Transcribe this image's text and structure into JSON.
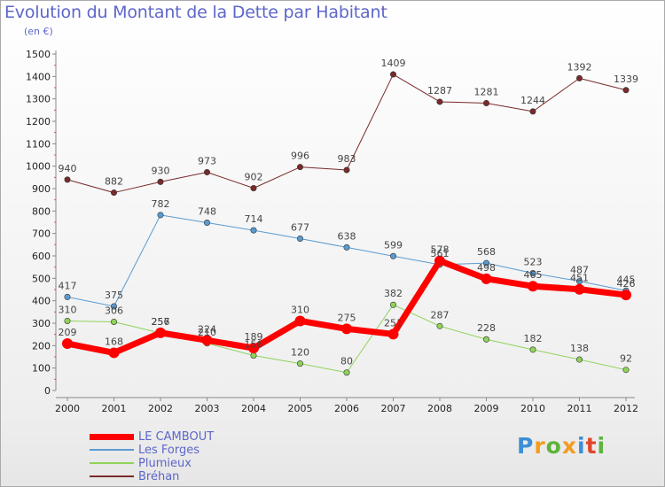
{
  "chart_data": {
    "type": "line",
    "title": "Evolution du Montant de la Dette par Habitant",
    "subtitle": "(en €)",
    "categories": [
      "2000",
      "2001",
      "2002",
      "2003",
      "2004",
      "2005",
      "2006",
      "2007",
      "2008",
      "2009",
      "2010",
      "2011",
      "2012"
    ],
    "ylim": [
      0,
      1500
    ],
    "yticks": [
      0,
      100,
      200,
      300,
      400,
      500,
      600,
      700,
      800,
      900,
      1000,
      1100,
      1200,
      1300,
      1400,
      1500
    ],
    "grid": false,
    "legend_position": "bottom-left",
    "series": [
      {
        "name": "LE CAMBOUT",
        "color": "#ff0000",
        "width": 7,
        "marker": 6,
        "values": [
          209,
          168,
          257,
          224,
          189,
          310,
          275,
          251,
          578,
          498,
          465,
          451,
          426
        ],
        "labels": [
          "209",
          "168",
          "257",
          "224",
          "189",
          "310",
          "275",
          "251",
          "578",
          "498",
          "465",
          "451",
          "426"
        ]
      },
      {
        "name": "Les Forges",
        "color": "#5a9bd1",
        "width": 1,
        "marker": 3.2,
        "values": [
          417,
          375,
          782,
          748,
          714,
          677,
          638,
          599,
          561,
          568,
          523,
          487,
          445
        ],
        "labels": [
          "417",
          "375",
          "782",
          "748",
          "714",
          "677",
          "638",
          "599",
          "561",
          "568",
          "523",
          "487",
          "445"
        ]
      },
      {
        "name": "Plumieux",
        "color": "#8fd35a",
        "width": 1,
        "marker": 3.2,
        "values": [
          310,
          306,
          256,
          210,
          156,
          120,
          80,
          382,
          287,
          228,
          182,
          138,
          92
        ],
        "labels": [
          "310",
          "306",
          "256",
          "210",
          "156",
          "120",
          "80",
          "382",
          "287",
          "228",
          "182",
          "138",
          "92"
        ]
      },
      {
        "name": "Bréhan",
        "color": "#7a2a2a",
        "width": 1,
        "marker": 3.2,
        "values": [
          940,
          882,
          930,
          973,
          902,
          996,
          983,
          1409,
          1287,
          1281,
          1244,
          1392,
          1339
        ],
        "labels": [
          "940",
          "882",
          "930",
          "973",
          "902",
          "996",
          "983",
          "1409",
          "1287",
          "1281",
          "1244",
          "1392",
          "1339"
        ]
      }
    ]
  },
  "brand": {
    "letters": [
      "P",
      "r",
      "o",
      "x",
      "i",
      "t",
      "i"
    ],
    "colors": [
      "#3b8fd6",
      "#f29d1f",
      "#5db33b",
      "#f29d1f",
      "#3b8fd6",
      "#e0462a",
      "#5db33b"
    ]
  }
}
